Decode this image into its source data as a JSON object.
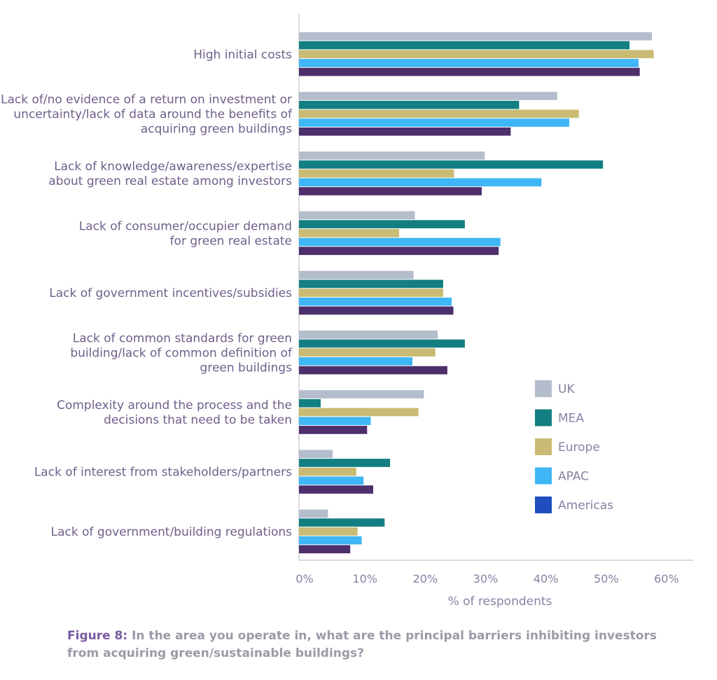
{
  "chart_data": {
    "type": "bar",
    "orientation": "horizontal",
    "categories": [
      [
        "High initial costs"
      ],
      [
        "Lack of/no evidence of a return on investment or",
        "uncertainty/lack of data around the benefits of",
        "acquiring green buildings"
      ],
      [
        "Lack of knowledge/awareness/expertise",
        "about green real estate among investors"
      ],
      [
        "Lack of consumer/occupier demand",
        "for green real estate"
      ],
      [
        "Lack of government incentives/subsidies"
      ],
      [
        "Lack of common standards for green",
        "building/lack of common definition of",
        "green buildings"
      ],
      [
        "Complexity around the process and the",
        "decisions that need to be taken"
      ],
      [
        "Lack of interest from stakeholders/partners"
      ],
      [
        "Lack of government/building regulations"
      ]
    ],
    "series": [
      {
        "name": "UK",
        "color": "#b4bdcc",
        "values": [
          58.5,
          42.8,
          30.8,
          19.2,
          19.0,
          23.0,
          20.7,
          5.6,
          4.8
        ]
      },
      {
        "name": "MEA",
        "color": "#137f82",
        "values": [
          54.8,
          36.5,
          50.4,
          27.5,
          23.9,
          27.5,
          3.6,
          15.1,
          14.2
        ]
      },
      {
        "name": "Europe",
        "color": "#c9bb73",
        "values": [
          58.8,
          46.4,
          25.7,
          16.6,
          23.9,
          22.6,
          19.8,
          9.5,
          9.7
        ]
      },
      {
        "name": "APAC",
        "color": "#3fb6f5",
        "values": [
          56.3,
          44.8,
          40.2,
          33.4,
          25.3,
          18.8,
          11.9,
          10.7,
          10.4
        ]
      },
      {
        "name": "Americas",
        "color": "#4d2f6b",
        "legend_color": "#1f4fbf",
        "values": [
          56.5,
          35.1,
          30.3,
          33.1,
          25.6,
          24.6,
          11.3,
          12.3,
          8.5
        ]
      }
    ],
    "xlabel": "% of respondents",
    "xticks": [
      "0%",
      "10%",
      "20%",
      "30%",
      "40%",
      "50%",
      "60%"
    ],
    "xlim": [
      0,
      65
    ],
    "legend_position": "right"
  },
  "caption": {
    "figure_label": "Figure 8:",
    "text": " In the area you operate in, what are the principal barriers inhibiting investors from acquiring green/sustainable buildings?"
  }
}
